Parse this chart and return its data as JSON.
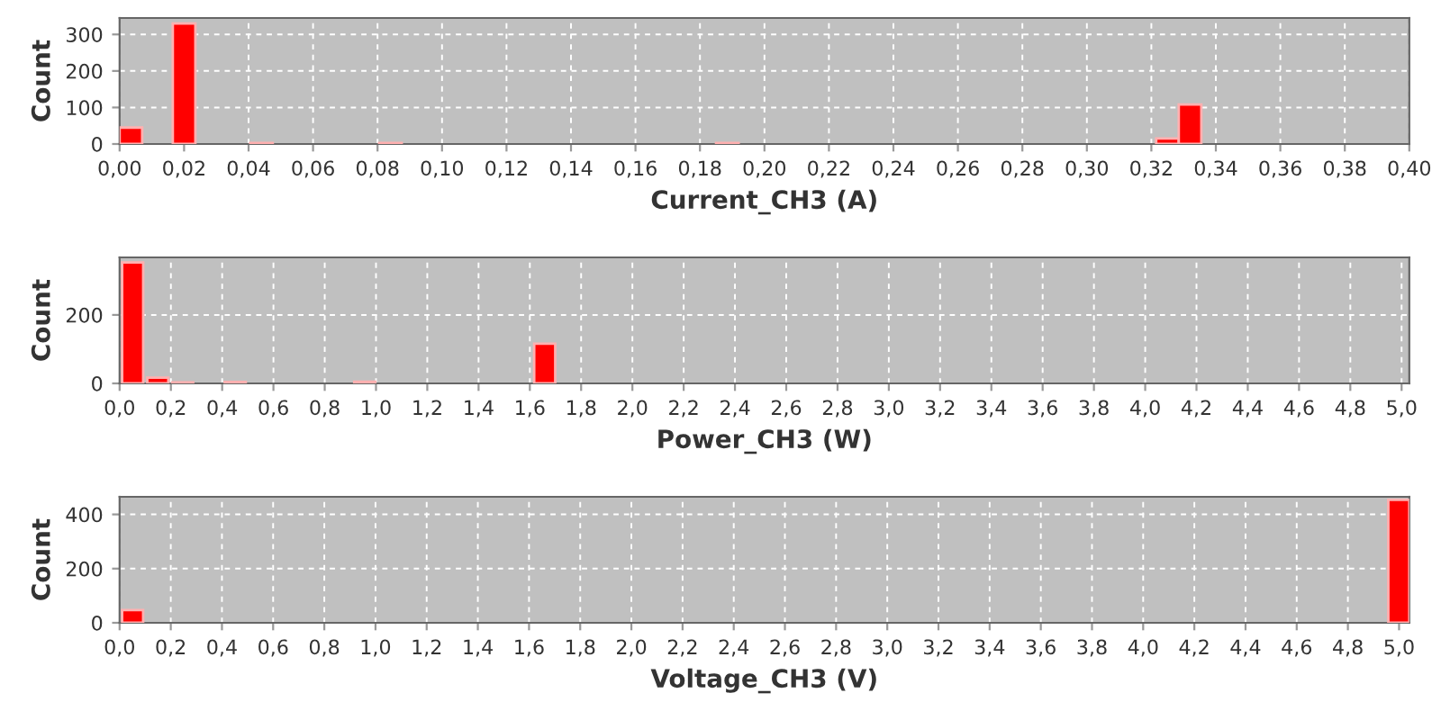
{
  "chart_data": [
    {
      "type": "histogram",
      "xlabel": "Current_CH3 (A)",
      "ylabel": "Count",
      "color": "#ff0000",
      "grid": true,
      "bins": [
        0.0,
        0.007,
        0.0165,
        0.0235,
        0.0405,
        0.0475,
        0.0805,
        0.0875,
        0.185,
        0.192,
        0.3215,
        0.3285,
        0.3355
      ],
      "values": [
        45,
        0,
        330,
        0,
        3,
        0,
        3,
        0,
        3,
        0,
        15,
        108
      ],
      "xlim": [
        0,
        0.4
      ],
      "ylim": [
        0,
        345
      ],
      "xticks": [
        {
          "value": 0,
          "label": "0,00"
        },
        {
          "value": 0.02,
          "label": "0,02"
        },
        {
          "value": 0.04,
          "label": "0,04"
        },
        {
          "value": 0.06,
          "label": "0,06"
        },
        {
          "value": 0.08,
          "label": "0,08"
        },
        {
          "value": 0.1,
          "label": "0,10"
        },
        {
          "value": 0.12,
          "label": "0,12"
        },
        {
          "value": 0.14,
          "label": "0,14"
        },
        {
          "value": 0.16,
          "label": "0,16"
        },
        {
          "value": 0.18,
          "label": "0,18"
        },
        {
          "value": 0.2,
          "label": "0,20"
        },
        {
          "value": 0.22,
          "label": "0,22"
        },
        {
          "value": 0.24,
          "label": "0,24"
        },
        {
          "value": 0.26,
          "label": "0,26"
        },
        {
          "value": 0.28,
          "label": "0,28"
        },
        {
          "value": 0.3,
          "label": "0,30"
        },
        {
          "value": 0.32,
          "label": "0,32"
        },
        {
          "value": 0.34,
          "label": "0,34"
        },
        {
          "value": 0.36,
          "label": "0,36"
        },
        {
          "value": 0.38,
          "label": "0,38"
        },
        {
          "value": 0.4,
          "label": "0,40"
        }
      ],
      "yticks": [
        0,
        100,
        200,
        300
      ]
    },
    {
      "type": "histogram",
      "xlabel": "Power_CH3 (W)",
      "ylabel": "Count",
      "color": "#ff0000",
      "grid": true,
      "bins": [
        0.01,
        0.092,
        0.108,
        0.19,
        0.205,
        0.287,
        0.41,
        0.492,
        0.915,
        0.997,
        1.617,
        1.699
      ],
      "values": [
        353,
        0,
        17,
        0,
        3,
        0,
        4,
        0,
        5,
        0,
        116
      ],
      "xlim": [
        0,
        5.03
      ],
      "ylim": [
        0,
        368
      ],
      "xticks": [
        {
          "value": 0,
          "label": "0,0"
        },
        {
          "value": 0.2,
          "label": "0,2"
        },
        {
          "value": 0.4,
          "label": "0,4"
        },
        {
          "value": 0.6,
          "label": "0,6"
        },
        {
          "value": 0.8,
          "label": "0,8"
        },
        {
          "value": 1.0,
          "label": "1,0"
        },
        {
          "value": 1.2,
          "label": "1,2"
        },
        {
          "value": 1.4,
          "label": "1,4"
        },
        {
          "value": 1.6,
          "label": "1,6"
        },
        {
          "value": 1.8,
          "label": "1,8"
        },
        {
          "value": 2.0,
          "label": "2,0"
        },
        {
          "value": 2.2,
          "label": "2,2"
        },
        {
          "value": 2.4,
          "label": "2,4"
        },
        {
          "value": 2.6,
          "label": "2,6"
        },
        {
          "value": 2.8,
          "label": "2,8"
        },
        {
          "value": 3.0,
          "label": "3,0"
        },
        {
          "value": 3.2,
          "label": "3,2"
        },
        {
          "value": 3.4,
          "label": "3,4"
        },
        {
          "value": 3.6,
          "label": "3,6"
        },
        {
          "value": 3.8,
          "label": "3,8"
        },
        {
          "value": 4.0,
          "label": "4,0"
        },
        {
          "value": 4.2,
          "label": "4,2"
        },
        {
          "value": 4.4,
          "label": "4,4"
        },
        {
          "value": 4.6,
          "label": "4,6"
        },
        {
          "value": 4.8,
          "label": "4,8"
        },
        {
          "value": 5.0,
          "label": "5,0"
        }
      ],
      "yticks": [
        0,
        200
      ]
    },
    {
      "type": "histogram",
      "xlabel": "Voltage_CH3 (V)",
      "ylabel": "Count",
      "color": "#ff0000",
      "grid": true,
      "bins": [
        0.01,
        0.092,
        4.958,
        5.04
      ],
      "values": [
        47,
        0,
        454
      ],
      "xlim": [
        0,
        5.04
      ],
      "ylim": [
        0,
        465
      ],
      "xticks": [
        {
          "value": 0,
          "label": "0,0"
        },
        {
          "value": 0.2,
          "label": "0,2"
        },
        {
          "value": 0.4,
          "label": "0,4"
        },
        {
          "value": 0.6,
          "label": "0,6"
        },
        {
          "value": 0.8,
          "label": "0,8"
        },
        {
          "value": 1.0,
          "label": "1,0"
        },
        {
          "value": 1.2,
          "label": "1,2"
        },
        {
          "value": 1.4,
          "label": "1,4"
        },
        {
          "value": 1.6,
          "label": "1,6"
        },
        {
          "value": 1.8,
          "label": "1,8"
        },
        {
          "value": 2.0,
          "label": "2,0"
        },
        {
          "value": 2.2,
          "label": "2,2"
        },
        {
          "value": 2.4,
          "label": "2,4"
        },
        {
          "value": 2.6,
          "label": "2,6"
        },
        {
          "value": 2.8,
          "label": "2,8"
        },
        {
          "value": 3.0,
          "label": "3,0"
        },
        {
          "value": 3.2,
          "label": "3,2"
        },
        {
          "value": 3.4,
          "label": "3,4"
        },
        {
          "value": 3.6,
          "label": "3,6"
        },
        {
          "value": 3.8,
          "label": "3,8"
        },
        {
          "value": 4.0,
          "label": "4,0"
        },
        {
          "value": 4.2,
          "label": "4,2"
        },
        {
          "value": 4.4,
          "label": "4,4"
        },
        {
          "value": 4.6,
          "label": "4,6"
        },
        {
          "value": 4.8,
          "label": "4,8"
        },
        {
          "value": 5.0,
          "label": "5,0"
        }
      ],
      "yticks": [
        0,
        200,
        400
      ]
    }
  ]
}
